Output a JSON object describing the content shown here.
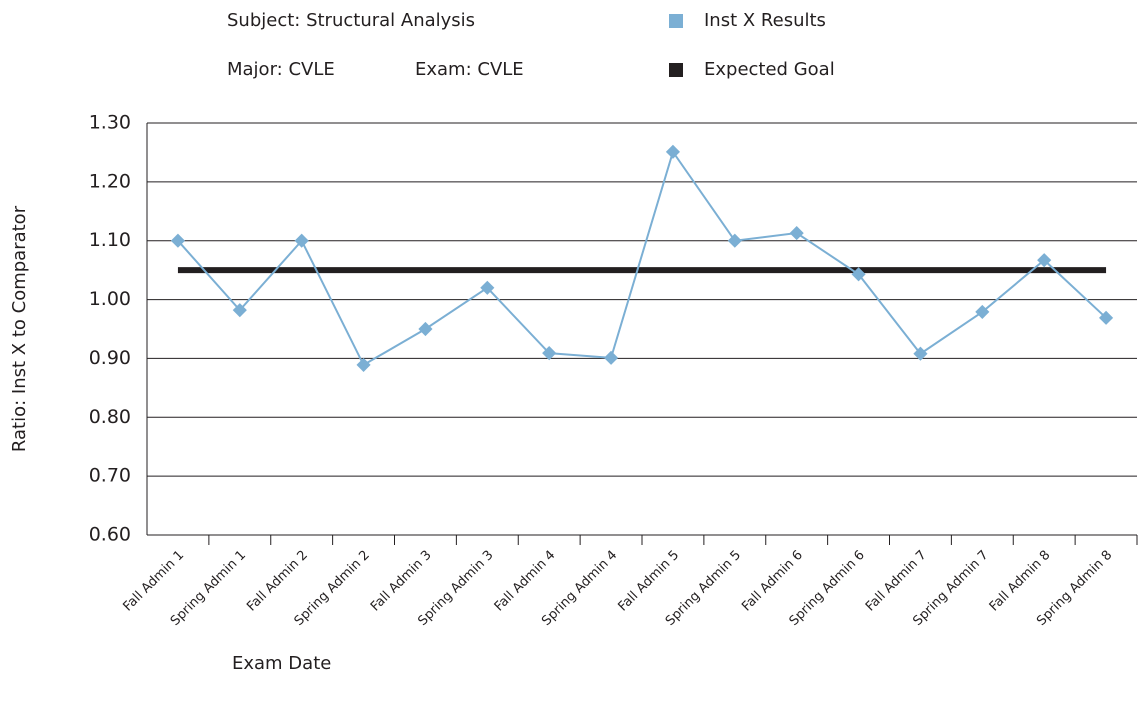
{
  "chart_data": {
    "type": "line",
    "annotations": [
      "Subject: Structural Analysis",
      "Major: CVLE",
      "Exam: CVLE"
    ],
    "x_label": "Exam Date",
    "y_label": "Ratio: Inst X to Comparator",
    "categories": [
      "Fall Admin 1",
      "Spring Admin 1",
      "Fall Admin 2",
      "Spring Admin 2",
      "Fall Admin 3",
      "Spring Admin 3",
      "Fall Admin 4",
      "Spring Admin 4",
      "Fall Admin 5",
      "Spring Admin 5",
      "Fall Admin 6",
      "Spring Admin 6",
      "Fall Admin 7",
      "Spring Admin 7",
      "Fall Admin 8",
      "Spring Admin 8"
    ],
    "series": [
      {
        "name": "Inst X Results",
        "color": "#7bafd4",
        "values": [
          1.1,
          0.982,
          1.1,
          0.889,
          0.95,
          1.02,
          0.909,
          0.901,
          1.251,
          1.1,
          1.113,
          1.043,
          0.908,
          0.979,
          1.067,
          0.969
        ]
      },
      {
        "name": "Expected Goal",
        "color": "#231f20",
        "values": [
          1.05,
          1.05,
          1.05,
          1.05,
          1.05,
          1.05,
          1.05,
          1.05,
          1.05,
          1.05,
          1.05,
          1.05,
          1.05,
          1.05,
          1.05,
          1.05
        ]
      }
    ],
    "ylim": [
      0.6,
      1.3
    ],
    "yticks": [
      {
        "value": 0.6,
        "label": "0.60"
      },
      {
        "value": 0.7,
        "label": "0.70"
      },
      {
        "value": 0.8,
        "label": "0.80"
      },
      {
        "value": 0.9,
        "label": "0.90"
      },
      {
        "value": 1.0,
        "label": "1.00"
      },
      {
        "value": 1.1,
        "label": "1.10"
      },
      {
        "value": 1.2,
        "label": "1.20"
      },
      {
        "value": 1.3,
        "label": "1.30"
      }
    ],
    "grid": true
  }
}
